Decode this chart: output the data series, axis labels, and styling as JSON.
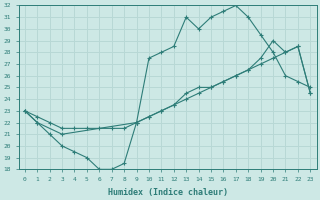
{
  "xlabel": "Humidex (Indice chaleur)",
  "bg_color": "#cde8e5",
  "line_color": "#2e7d78",
  "grid_color": "#b8d8d5",
  "xlim": [
    -0.5,
    23.5
  ],
  "ylim": [
    18,
    32
  ],
  "yticks": [
    18,
    19,
    20,
    21,
    22,
    23,
    24,
    25,
    26,
    27,
    28,
    29,
    30,
    31,
    32
  ],
  "xticks": [
    0,
    1,
    2,
    3,
    4,
    5,
    6,
    7,
    8,
    9,
    10,
    11,
    12,
    13,
    14,
    15,
    16,
    17,
    18,
    19,
    20,
    21,
    22,
    23
  ],
  "line_upper_x": [
    0,
    1,
    3,
    9,
    10,
    11,
    12,
    13,
    14,
    15,
    16,
    17,
    18,
    19,
    20,
    21,
    22,
    23
  ],
  "line_upper_y": [
    23,
    22,
    21,
    22,
    27.5,
    28,
    28.5,
    31,
    30,
    31,
    31.5,
    32,
    31,
    29.5,
    28,
    26,
    25.5,
    25
  ],
  "line_mid_x": [
    0,
    1,
    2,
    3,
    4,
    5,
    6,
    7,
    8,
    9,
    10,
    11,
    12,
    13,
    14,
    15,
    16,
    17,
    18,
    19,
    20,
    21,
    22,
    23
  ],
  "line_mid_y": [
    23,
    22.5,
    22,
    21.5,
    21.5,
    21.5,
    21.5,
    21.5,
    21.5,
    22,
    22.5,
    23,
    23.5,
    24,
    24.5,
    25,
    25.5,
    26,
    26.5,
    27,
    27.5,
    28,
    28.5,
    24.5
  ],
  "line_lower_x": [
    0,
    1,
    2,
    3,
    4,
    5,
    6,
    7,
    8,
    9,
    10,
    11,
    12,
    13,
    14,
    15,
    16,
    17,
    18,
    19,
    20,
    21,
    22,
    23
  ],
  "line_lower_y": [
    23,
    22,
    21,
    20,
    19.5,
    19,
    18,
    18,
    18.5,
    22,
    22.5,
    23,
    23.5,
    24.5,
    25,
    25,
    25.5,
    26,
    26.5,
    27.5,
    29,
    28,
    28.5,
    24.5
  ]
}
